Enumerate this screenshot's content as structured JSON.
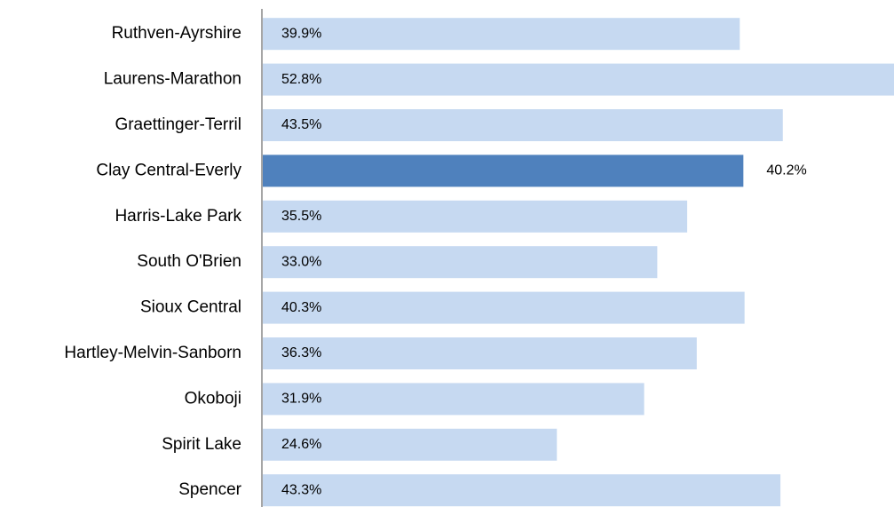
{
  "chart_data": {
    "type": "barh",
    "categories": [
      "Ruthven-Ayrshire",
      "Laurens-Marathon",
      "Graettinger-Terril",
      "Clay Central-Everly",
      "Harris-Lake Park",
      "South O'Brien",
      "Sioux Central",
      "Hartley-Melvin-Sanborn",
      "Okoboji",
      "Spirit Lake",
      "Spencer"
    ],
    "values": [
      39.9,
      52.8,
      43.5,
      40.2,
      35.5,
      33.0,
      40.3,
      36.3,
      31.9,
      24.6,
      43.3
    ],
    "value_labels": [
      "39.9%",
      "52.8%",
      "43.5%",
      "40.2%",
      "35.5%",
      "33.0%",
      "40.3%",
      "36.3%",
      "31.9%",
      "24.6%",
      "43.3%"
    ],
    "colors": [
      "#c6d9f1",
      "#c6d9f1",
      "#c6d9f1",
      "#4f81bd",
      "#c6d9f1",
      "#c6d9f1",
      "#c6d9f1",
      "#c6d9f1",
      "#c6d9f1",
      "#c6d9f1",
      "#c6d9f1"
    ],
    "value_label_position": [
      "inside",
      "inside",
      "inside",
      "outside",
      "inside",
      "inside",
      "inside",
      "inside",
      "inside",
      "inside",
      "inside"
    ],
    "xlim": [
      0,
      52.8
    ]
  }
}
